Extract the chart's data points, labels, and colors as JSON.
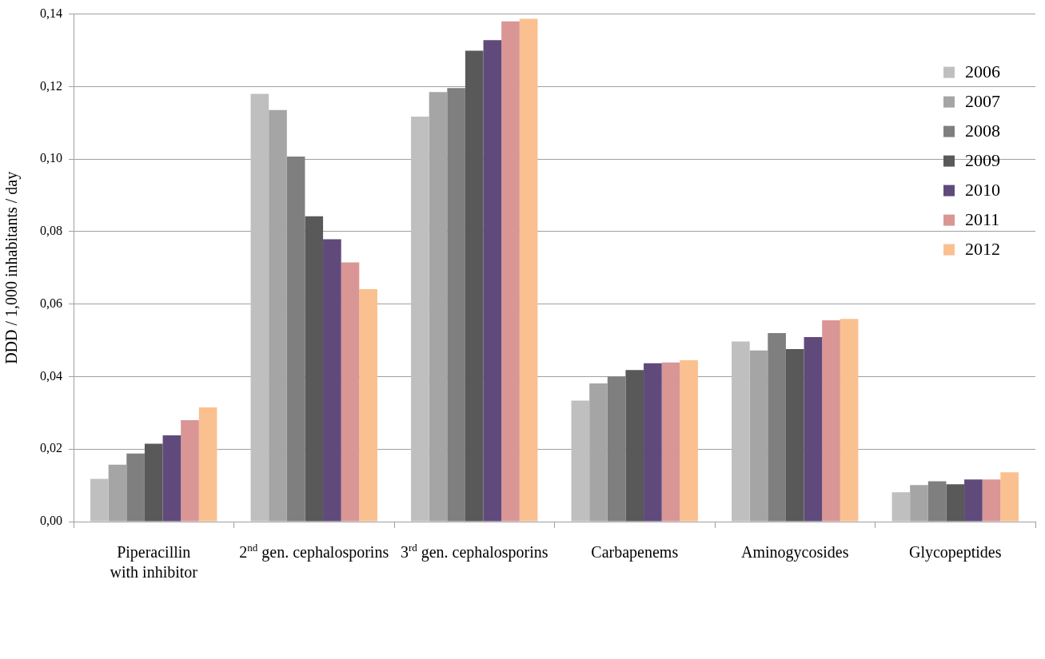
{
  "chart_data": {
    "type": "bar",
    "categories": [
      "Piperacillin with inhibitor",
      "2$^{nd}$ gen. cephalosporins",
      "3$^{rd}$ gen. cephalosporins",
      "Carbapenems",
      "Aminogycosides",
      "Glycopeptides"
    ],
    "series": [
      {
        "name": "2006",
        "color": "#bfbfbf",
        "values": [
          0.0118,
          0.118,
          0.1117,
          0.0334,
          0.0497,
          0.0081
        ]
      },
      {
        "name": "2007",
        "color": "#a5a5a5",
        "values": [
          0.0157,
          0.1135,
          0.1185,
          0.0381,
          0.0472,
          0.0101
        ]
      },
      {
        "name": "2008",
        "color": "#7f7f7f",
        "values": [
          0.0188,
          0.1007,
          0.1196,
          0.04,
          0.052,
          0.0111
        ]
      },
      {
        "name": "2009",
        "color": "#595959",
        "values": [
          0.0215,
          0.0842,
          0.1299,
          0.0418,
          0.0476,
          0.0103
        ]
      },
      {
        "name": "2010",
        "color": "#604a7b",
        "values": [
          0.0238,
          0.0779,
          0.1328,
          0.0437,
          0.0509,
          0.0116
        ]
      },
      {
        "name": "2011",
        "color": "#d99694",
        "values": [
          0.028,
          0.0715,
          0.138,
          0.0439,
          0.0555,
          0.0116
        ]
      },
      {
        "name": "2012",
        "color": "#fac090",
        "values": [
          0.0315,
          0.0641,
          0.1387,
          0.0445,
          0.0559,
          0.0136
        ]
      }
    ],
    "ylabel": "DDD / 1,000 inhabitants / day",
    "ylim": [
      0,
      0.14
    ],
    "yticks": [
      {
        "value": 0,
        "label": "0,00"
      },
      {
        "value": 0.02,
        "label": "0,02"
      },
      {
        "value": 0.04,
        "label": "0,04"
      },
      {
        "value": 0.06,
        "label": "0,06"
      },
      {
        "value": 0.08,
        "label": "0,08"
      },
      {
        "value": 0.1,
        "label": "0,10"
      },
      {
        "value": 0.12,
        "label": "0,12"
      },
      {
        "value": 0.14,
        "label": "0,14"
      }
    ],
    "grid": "y",
    "legend": "top right"
  }
}
